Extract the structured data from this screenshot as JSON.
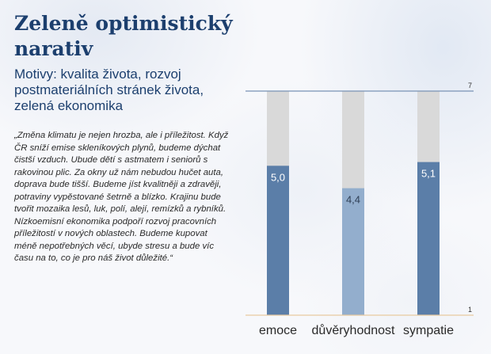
{
  "header": {
    "title": "Zeleně optimistický narativ",
    "subtitle": "Motivy: kvalita života, rozvoj postmateriálních stránek života, zelená ekonomika"
  },
  "quote": "„Změna klimatu je nejen hrozba, ale i příleži­tost. Když ČR sníží emise skleníkových plynů, budeme dýchat čistší vzduch. Ubude dětí s astmatem i seniorů s rakovinou plic. Za okny už nám nebudou hučet auta, doprava bude tišší. Budeme jíst kvalitněji a zdravěji, potraviny vypěstované šetrně a blízko. Krajinu bude tvořit mozaika lesů, luk, polí, alejí, remízků a rybníků. Nízkoemisní ekonomika podpoří rozvoj pracovních příležitostí v nových oblastech. Budeme kupovat méně nepotřebných věcí, ubyde stresu a bude víc času na to, co je pro náš život důležité.“",
  "chart_data": {
    "type": "bar",
    "categories": [
      "emoce",
      "důvěryhodnost",
      "sympatie"
    ],
    "values": [
      5.0,
      4.4,
      5.1
    ],
    "value_labels": [
      "5,0",
      "4,4",
      "5,1"
    ],
    "ylim": [
      1,
      7
    ],
    "yticks": [
      {
        "value": 1,
        "label": "1"
      },
      {
        "value": 7,
        "label": "7"
      }
    ],
    "background_bars": true,
    "colors": {
      "fill": [
        "#5b7ea8",
        "#93aecd",
        "#5b7ea8"
      ],
      "track": "#d9d9d9",
      "top_line": "#7892b5",
      "bottom_line": "#e8c9a0",
      "label_dark": "#ffffff",
      "label_light": "#2f3f55"
    }
  }
}
